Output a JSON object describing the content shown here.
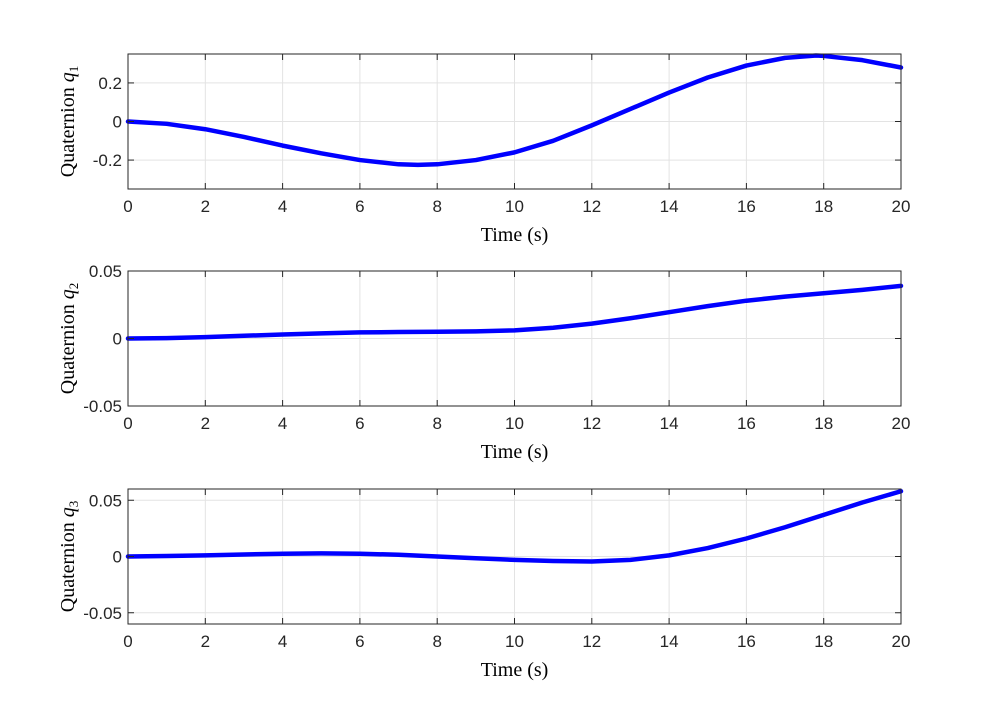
{
  "chart_data": [
    {
      "type": "line",
      "xlabel": "Time (s)",
      "ylabel": {
        "prefix": "Quaternion ",
        "symbol": "q",
        "subscript": "1"
      },
      "xlim": [
        0,
        20
      ],
      "ylim": [
        -0.35,
        0.35
      ],
      "xticks": [
        0,
        2,
        4,
        6,
        8,
        10,
        12,
        14,
        16,
        18,
        20
      ],
      "yticks": [
        -0.2,
        0,
        0.2
      ],
      "ytick_labels": [
        "-0.2",
        "0",
        "0.2"
      ],
      "grid": true,
      "color": "#0000ff",
      "x": [
        0,
        1,
        2,
        3,
        4,
        5,
        6,
        7,
        7.5,
        8,
        9,
        10,
        11,
        12,
        13,
        14,
        15,
        16,
        17,
        17.8,
        18,
        19,
        20
      ],
      "y": [
        0,
        -0.012,
        -0.04,
        -0.08,
        -0.125,
        -0.165,
        -0.2,
        -0.222,
        -0.225,
        -0.222,
        -0.2,
        -0.16,
        -0.1,
        -0.02,
        0.065,
        0.15,
        0.228,
        0.29,
        0.33,
        0.342,
        0.34,
        0.318,
        0.28
      ]
    },
    {
      "type": "line",
      "xlabel": "Time (s)",
      "ylabel": {
        "prefix": "Quaternion ",
        "symbol": "q",
        "subscript": "2"
      },
      "xlim": [
        0,
        20
      ],
      "ylim": [
        -0.05,
        0.05
      ],
      "xticks": [
        0,
        2,
        4,
        6,
        8,
        10,
        12,
        14,
        16,
        18,
        20
      ],
      "yticks": [
        -0.05,
        0,
        0.05
      ],
      "ytick_labels": [
        "-0.05",
        "0",
        "0.05"
      ],
      "grid": true,
      "color": "#0000ff",
      "x": [
        0,
        1,
        2,
        3,
        4,
        5,
        6,
        7,
        8,
        9,
        10,
        11,
        12,
        13,
        14,
        15,
        16,
        17,
        18,
        19,
        20
      ],
      "y": [
        0,
        0.0003,
        0.001,
        0.002,
        0.003,
        0.0038,
        0.0045,
        0.0048,
        0.005,
        0.0053,
        0.006,
        0.008,
        0.011,
        0.015,
        0.0195,
        0.024,
        0.028,
        0.031,
        0.0335,
        0.036,
        0.039
      ]
    },
    {
      "type": "line",
      "xlabel": "Time (s)",
      "ylabel": {
        "prefix": "Quaternion ",
        "symbol": "q",
        "subscript": "3"
      },
      "xlim": [
        0,
        20
      ],
      "ylim": [
        -0.06,
        0.06
      ],
      "xticks": [
        0,
        2,
        4,
        6,
        8,
        10,
        12,
        14,
        16,
        18,
        20
      ],
      "yticks": [
        -0.05,
        0,
        0.05
      ],
      "ytick_labels": [
        "-0.05",
        "0",
        "0.05"
      ],
      "grid": true,
      "color": "#0000ff",
      "x": [
        0,
        1,
        2,
        3,
        4,
        5,
        6,
        7,
        8,
        9,
        10,
        11,
        12,
        13,
        14,
        15,
        16,
        17,
        18,
        19,
        20
      ],
      "y": [
        0,
        0.0005,
        0.001,
        0.0018,
        0.0025,
        0.0028,
        0.0025,
        0.0015,
        0,
        -0.0015,
        -0.003,
        -0.004,
        -0.0045,
        -0.003,
        0.001,
        0.0075,
        0.016,
        0.026,
        0.037,
        0.048,
        0.058
      ]
    }
  ]
}
